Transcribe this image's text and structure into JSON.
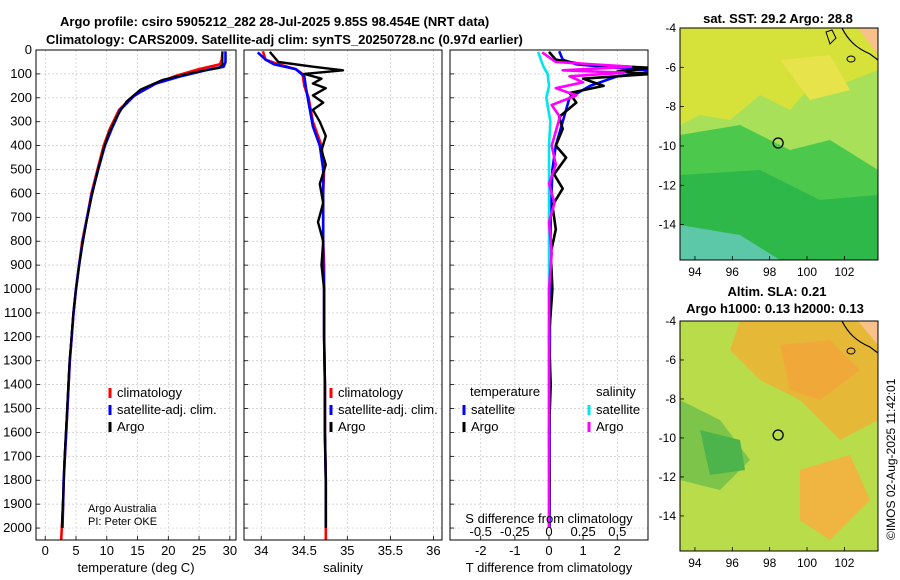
{
  "figure": {
    "title_line1": "Argo profile: csiro 5905212_282 28-Jul-2025 9.85S 98.454E (NRT data)",
    "title_line2": "Climatology: CARS2009. Satellite-adj clim: synTS_20250728.nc (0.97d earlier)",
    "credit_line1": "Argo Australia",
    "credit_line2": "PI: Peter OKE",
    "timestamp": "©IMOS 02-Aug-2025 11:42:01"
  },
  "colors": {
    "climatology": "#ff0000",
    "satellite_adj": "#0000ff",
    "argo": "#000000",
    "sal_satellite": "#00e5ee",
    "sal_argo": "#ff00ff"
  },
  "maps": {
    "sst": {
      "title": "sat. SST: 29.2 Argo: 28.8",
      "xticks": [
        "94",
        "96",
        "98",
        "100",
        "102"
      ],
      "yticks": [
        "-4",
        "-6",
        "-8",
        "-10",
        "-12",
        "-14"
      ],
      "xlim": [
        93.2,
        103.8
      ],
      "ylim": [
        -15.8,
        -4
      ]
    },
    "sla": {
      "title_line1": "Altim. SLA: 0.21",
      "title_line2": "Argo h1000: 0.13 h2000: 0.13",
      "xticks": [
        "94",
        "96",
        "98",
        "100",
        "102"
      ],
      "yticks": [
        "-4",
        "-6",
        "-8",
        "-10",
        "-12",
        "-14"
      ],
      "xlim": [
        93.2,
        103.8
      ],
      "ylim": [
        -15.8,
        -4
      ]
    },
    "argo_position": {
      "lon": 98.454,
      "lat": -9.85
    }
  },
  "chart_data": [
    {
      "type": "line",
      "id": "temperature",
      "xlabel": "temperature (deg C)",
      "ylabel": "",
      "xlim": [
        -1.5,
        31
      ],
      "ylim": [
        2050,
        0
      ],
      "xticks": [
        "0",
        "5",
        "10",
        "15",
        "20",
        "25",
        "30"
      ],
      "yticks": [
        "0",
        "100",
        "200",
        "300",
        "400",
        "500",
        "600",
        "700",
        "800",
        "900",
        "1000",
        "1100",
        "1200",
        "1300",
        "1400",
        "1500",
        "1600",
        "1700",
        "1800",
        "1900",
        "2000"
      ],
      "legend": [
        "climatology",
        "satellite-adj. clim.",
        "Argo"
      ],
      "series": [
        {
          "name": "climatology",
          "points": [
            [
              28.8,
              5
            ],
            [
              28.7,
              40
            ],
            [
              28.4,
              60
            ],
            [
              25,
              80
            ],
            [
              21,
              110
            ],
            [
              17,
              150
            ],
            [
              14,
              200
            ],
            [
              12,
              250
            ],
            [
              10.5,
              330
            ],
            [
              9.5,
              400
            ],
            [
              8.5,
              500
            ],
            [
              7.5,
              600
            ],
            [
              6.8,
              700
            ],
            [
              6.0,
              800
            ],
            [
              5.5,
              900
            ],
            [
              5.0,
              1000
            ],
            [
              4.6,
              1100
            ],
            [
              4.3,
              1200
            ],
            [
              4.0,
              1300
            ],
            [
              3.8,
              1400
            ],
            [
              3.6,
              1500
            ],
            [
              3.4,
              1600
            ],
            [
              3.2,
              1700
            ],
            [
              3.0,
              1800
            ],
            [
              2.9,
              1900
            ],
            [
              2.7,
              2000
            ],
            [
              2.6,
              2050
            ]
          ]
        },
        {
          "name": "satellite-adj. clim.",
          "points": [
            [
              29.3,
              5
            ],
            [
              29.3,
              50
            ],
            [
              29.0,
              70
            ],
            [
              26,
              85
            ],
            [
              22,
              110
            ],
            [
              18,
              140
            ],
            [
              14.5,
              190
            ],
            [
              12.2,
              250
            ],
            [
              10.8,
              330
            ],
            [
              9.7,
              400
            ],
            [
              8.6,
              500
            ],
            [
              7.6,
              600
            ],
            [
              6.8,
              700
            ],
            [
              6.1,
              800
            ],
            [
              5.5,
              900
            ],
            [
              5.0,
              1000
            ],
            [
              4.6,
              1100
            ],
            [
              4.3,
              1200
            ],
            [
              4.0,
              1300
            ],
            [
              3.8,
              1400
            ],
            [
              3.6,
              1500
            ],
            [
              3.4,
              1600
            ],
            [
              3.2,
              1700
            ],
            [
              3.0,
              1800
            ],
            [
              2.9,
              1900
            ],
            [
              2.8,
              2000
            ]
          ]
        },
        {
          "name": "Argo",
          "points": [
            [
              28.8,
              8
            ],
            [
              28.8,
              60
            ],
            [
              28.3,
              75
            ],
            [
              24,
              95
            ],
            [
              19,
              125
            ],
            [
              15.5,
              165
            ],
            [
              13.2,
              215
            ],
            [
              11.6,
              280
            ],
            [
              10.3,
              350
            ],
            [
              9.4,
              420
            ],
            [
              8.4,
              520
            ],
            [
              7.5,
              620
            ],
            [
              6.7,
              720
            ],
            [
              6.0,
              820
            ],
            [
              5.4,
              920
            ],
            [
              4.9,
              1020
            ],
            [
              4.5,
              1120
            ],
            [
              4.2,
              1220
            ],
            [
              3.9,
              1320
            ],
            [
              3.7,
              1420
            ],
            [
              3.5,
              1520
            ],
            [
              3.3,
              1620
            ],
            [
              3.1,
              1720
            ],
            [
              3.0,
              1820
            ],
            [
              2.8,
              1920
            ],
            [
              2.7,
              2000
            ]
          ]
        }
      ]
    },
    {
      "type": "line",
      "id": "salinity",
      "xlabel": "salinity",
      "ylabel": "",
      "xlim": [
        33.8,
        36.1
      ],
      "ylim": [
        2050,
        0
      ],
      "xticks": [
        "34",
        "34.5",
        "35",
        "35.5",
        "36"
      ],
      "legend": [
        "climatology",
        "satellite-adj. clim.",
        "Argo"
      ],
      "series": [
        {
          "name": "climatology",
          "points": [
            [
              34.02,
              5
            ],
            [
              34.05,
              40
            ],
            [
              34.2,
              60
            ],
            [
              34.4,
              80
            ],
            [
              34.48,
              100
            ],
            [
              34.5,
              150
            ],
            [
              34.55,
              200
            ],
            [
              34.6,
              300
            ],
            [
              34.7,
              400
            ],
            [
              34.73,
              500
            ],
            [
              34.72,
              600
            ],
            [
              34.72,
              700
            ],
            [
              34.72,
              800
            ],
            [
              34.73,
              900
            ],
            [
              34.73,
              1000
            ],
            [
              34.73,
              1200
            ],
            [
              34.74,
              1400
            ],
            [
              34.74,
              1600
            ],
            [
              34.75,
              1800
            ],
            [
              34.75,
              2000
            ],
            [
              34.75,
              2050
            ]
          ]
        },
        {
          "name": "satellite-adj. clim.",
          "points": [
            [
              33.96,
              10
            ],
            [
              34.05,
              40
            ],
            [
              34.15,
              60
            ],
            [
              34.4,
              80
            ],
            [
              34.5,
              110
            ],
            [
              34.52,
              160
            ],
            [
              34.55,
              220
            ],
            [
              34.6,
              320
            ],
            [
              34.68,
              400
            ],
            [
              34.72,
              500
            ],
            [
              34.72,
              600
            ],
            [
              34.72,
              700
            ],
            [
              34.72,
              800
            ],
            [
              34.72,
              900
            ],
            [
              34.73,
              1000
            ],
            [
              34.73,
              1200
            ],
            [
              34.74,
              1400
            ],
            [
              34.74,
              1600
            ],
            [
              34.75,
              1800
            ],
            [
              34.75,
              2000
            ]
          ]
        },
        {
          "name": "Argo",
          "points": [
            [
              34.1,
              8
            ],
            [
              34.2,
              50
            ],
            [
              34.6,
              70
            ],
            [
              34.95,
              85
            ],
            [
              34.5,
              100
            ],
            [
              34.7,
              120
            ],
            [
              34.6,
              140
            ],
            [
              34.75,
              160
            ],
            [
              34.6,
              190
            ],
            [
              34.72,
              220
            ],
            [
              34.6,
              250
            ],
            [
              34.68,
              300
            ],
            [
              34.75,
              360
            ],
            [
              34.7,
              420
            ],
            [
              34.75,
              480
            ],
            [
              34.68,
              560
            ],
            [
              34.72,
              640
            ],
            [
              34.66,
              720
            ],
            [
              34.72,
              800
            ],
            [
              34.7,
              900
            ],
            [
              34.73,
              1000
            ],
            [
              34.73,
              1200
            ],
            [
              34.74,
              1400
            ],
            [
              34.74,
              1600
            ],
            [
              34.75,
              1800
            ],
            [
              34.75,
              2000
            ]
          ]
        }
      ]
    },
    {
      "type": "line",
      "id": "difference",
      "xlabel": "T difference from climatology",
      "xlabel_top": "S difference from climatology",
      "ylabel": "",
      "xlim": [
        -2.9,
        2.9
      ],
      "ylim": [
        2050,
        0
      ],
      "xticks": [
        "-2",
        "-1",
        "0",
        "1",
        "2"
      ],
      "sal_xlim": [
        -0.725,
        0.725
      ],
      "sal_xticks": [
        "-0.5",
        "-0.25",
        "0",
        "0.25",
        "0.5"
      ],
      "legend_temperature": "temperature",
      "legend_salinity": "salinity",
      "legend_items": [
        "satellite",
        "Argo"
      ],
      "series": [
        {
          "name": "temperature satellite",
          "points": [
            [
              0.3,
              5
            ],
            [
              0.4,
              40
            ],
            [
              0.8,
              60
            ],
            [
              2.0,
              75
            ],
            [
              3.2,
              90
            ],
            [
              2.0,
              110
            ],
            [
              1.2,
              150
            ],
            [
              0.6,
              200
            ],
            [
              0.4,
              300
            ],
            [
              0.2,
              400
            ],
            [
              0.1,
              500
            ],
            [
              0.05,
              700
            ],
            [
              0.03,
              1000
            ],
            [
              0.02,
              1500
            ],
            [
              0.02,
              2000
            ]
          ]
        },
        {
          "name": "temperature Argo",
          "points": [
            [
              0,
              8
            ],
            [
              0.2,
              40
            ],
            [
              1.0,
              60
            ],
            [
              3.0,
              75
            ],
            [
              2.0,
              90
            ],
            [
              3.0,
              100
            ],
            [
              1.0,
              120
            ],
            [
              1.6,
              150
            ],
            [
              0.6,
              180
            ],
            [
              0.8,
              220
            ],
            [
              0.3,
              280
            ],
            [
              0.4,
              330
            ],
            [
              0.2,
              400
            ],
            [
              0.5,
              450
            ],
            [
              0.15,
              520
            ],
            [
              0.4,
              580
            ],
            [
              0.1,
              650
            ],
            [
              0.2,
              750
            ],
            [
              0.05,
              850
            ],
            [
              0.1,
              1000
            ],
            [
              0.0,
              1200
            ],
            [
              0.05,
              1400
            ],
            [
              0.0,
              1600
            ],
            [
              0.02,
              1800
            ],
            [
              0.0,
              2000
            ]
          ]
        },
        {
          "name": "salinity satellite",
          "points": [
            [
              -0.08,
              8
            ],
            [
              -0.06,
              40
            ],
            [
              -0.04,
              70
            ],
            [
              -0.01,
              100
            ],
            [
              0.0,
              150
            ],
            [
              -0.02,
              200
            ],
            [
              0.01,
              300
            ],
            [
              0.0,
              400
            ],
            [
              0.0,
              600
            ],
            [
              0.0,
              1000
            ],
            [
              0.0,
              1500
            ],
            [
              0.0,
              2000
            ]
          ]
        },
        {
          "name": "salinity Argo",
          "points": [
            [
              -0.05,
              10
            ],
            [
              0.05,
              50
            ],
            [
              0.6,
              70
            ],
            [
              0.1,
              85
            ],
            [
              0.55,
              95
            ],
            [
              0.15,
              110
            ],
            [
              0.25,
              135
            ],
            [
              0.05,
              160
            ],
            [
              0.2,
              190
            ],
            [
              0.02,
              230
            ],
            [
              0.08,
              280
            ],
            [
              0.05,
              340
            ],
            [
              0.02,
              400
            ],
            [
              0.05,
              480
            ],
            [
              0.0,
              560
            ],
            [
              0.04,
              640
            ],
            [
              0.0,
              720
            ],
            [
              0.02,
              850
            ],
            [
              0.0,
              1000
            ],
            [
              0.0,
              1400
            ],
            [
              0.0,
              2000
            ]
          ]
        }
      ]
    }
  ]
}
